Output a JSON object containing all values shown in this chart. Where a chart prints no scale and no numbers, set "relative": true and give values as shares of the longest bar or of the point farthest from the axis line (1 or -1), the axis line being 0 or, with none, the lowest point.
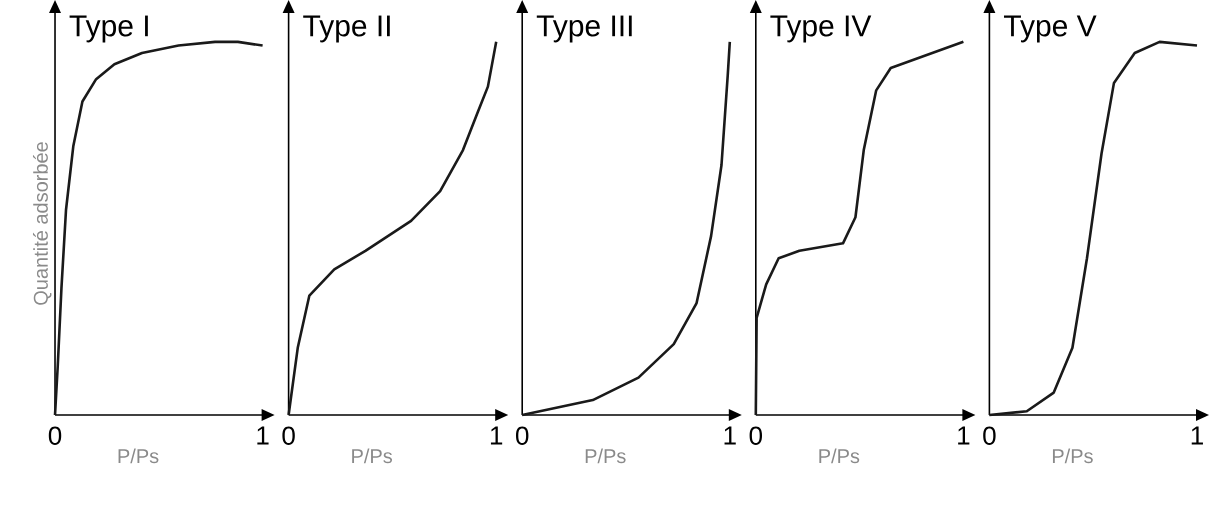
{
  "chart_data": [
    {
      "type": "line",
      "title": "Type I",
      "xlabel": "P/Ps",
      "ylabel": "Quantité adsorbée",
      "relative": true,
      "tick_labels": "x",
      "xlim": [
        0,
        1
      ],
      "xticks": [
        0,
        1
      ],
      "color": "#1a1a1a",
      "x": [
        0,
        0.013,
        0.031,
        0.053,
        0.088,
        0.132,
        0.198,
        0.286,
        0.419,
        0.595,
        0.771,
        0.881,
        1.0
      ],
      "values": [
        0,
        0.13,
        0.34,
        0.55,
        0.72,
        0.84,
        0.9,
        0.94,
        0.97,
        0.99,
        1.0,
        1.0,
        0.99
      ]
    },
    {
      "type": "line",
      "title": "Type II",
      "xlabel": "P/Ps",
      "relative": true,
      "tick_labels": "x",
      "xlim": [
        0,
        1
      ],
      "xticks": [
        0,
        1
      ],
      "color": "#1a1a1a",
      "x": [
        0,
        0.044,
        0.1,
        0.22,
        0.37,
        0.59,
        0.73,
        0.84,
        0.91,
        0.96,
        1.0
      ],
      "values": [
        0,
        0.18,
        0.32,
        0.39,
        0.44,
        0.52,
        0.6,
        0.71,
        0.81,
        0.88,
        1.0
      ]
    },
    {
      "type": "line",
      "title": "Type III",
      "xlabel": "P/Ps",
      "relative": true,
      "tick_labels": "x",
      "xlim": [
        0,
        1
      ],
      "xticks": [
        0,
        1
      ],
      "color": "#1a1a1a",
      "x": [
        0,
        0.34,
        0.56,
        0.73,
        0.84,
        0.91,
        0.96,
        0.99,
        1.0
      ],
      "values": [
        0,
        0.04,
        0.1,
        0.19,
        0.3,
        0.48,
        0.67,
        0.91,
        1.0
      ]
    },
    {
      "type": "line",
      "title": "Type IV",
      "xlabel": "P/Ps",
      "relative": true,
      "tick_labels": "x",
      "xlim": [
        0,
        1
      ],
      "xticks": [
        0,
        1
      ],
      "color": "#1a1a1a",
      "x": [
        0,
        0.004,
        0.05,
        0.11,
        0.21,
        0.42,
        0.48,
        0.52,
        0.58,
        0.65,
        0.8,
        1.0
      ],
      "values": [
        0,
        0.26,
        0.35,
        0.42,
        0.44,
        0.46,
        0.53,
        0.71,
        0.87,
        0.93,
        0.96,
        1.0
      ]
    },
    {
      "type": "line",
      "title": "Type V",
      "xlabel": "P/Ps",
      "relative": true,
      "tick_labels": "x",
      "xlim": [
        0,
        1
      ],
      "xticks": [
        0,
        1
      ],
      "color": "#1a1a1a",
      "x": [
        0,
        0.18,
        0.31,
        0.4,
        0.47,
        0.54,
        0.6,
        0.7,
        0.82,
        1.0
      ],
      "values": [
        0,
        0.01,
        0.06,
        0.18,
        0.42,
        0.7,
        0.89,
        0.97,
        1.0,
        0.99
      ]
    }
  ]
}
